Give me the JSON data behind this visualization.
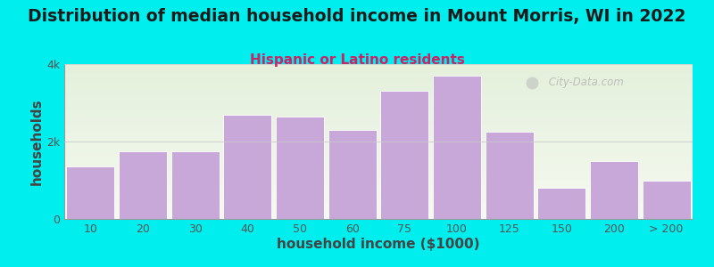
{
  "title": "Distribution of median household income in Mount Morris, WI in 2022",
  "subtitle": "Hispanic or Latino residents",
  "xlabel": "household income ($1000)",
  "ylabel": "households",
  "background_color": "#00EEEE",
  "bar_color": "#c8a8d8",
  "bar_edge_color": "#ffffff",
  "ylim": [
    0,
    4000
  ],
  "ytick_labels": [
    "0",
    "2k",
    "4k"
  ],
  "ytick_values": [
    0,
    2000,
    4000
  ],
  "categories": [
    "10",
    "20",
    "30",
    "40",
    "50",
    "60",
    "75",
    "100",
    "125",
    "150",
    "200",
    "> 200"
  ],
  "values": [
    1350,
    1750,
    1750,
    2700,
    2650,
    2300,
    3300,
    3700,
    2250,
    800,
    1500,
    980
  ],
  "title_fontsize": 13.5,
  "subtitle_fontsize": 11,
  "axis_label_fontsize": 11,
  "tick_fontsize": 9,
  "title_color": "#1a1a1a",
  "subtitle_color": "#cc2266",
  "axis_label_color": "#444444",
  "tick_color": "#555555",
  "watermark_text": " City-Data.com",
  "watermark_color": "#aaaaaa",
  "plot_bg_left": "#e4f0dc",
  "plot_bg_right": "#f5faf0"
}
